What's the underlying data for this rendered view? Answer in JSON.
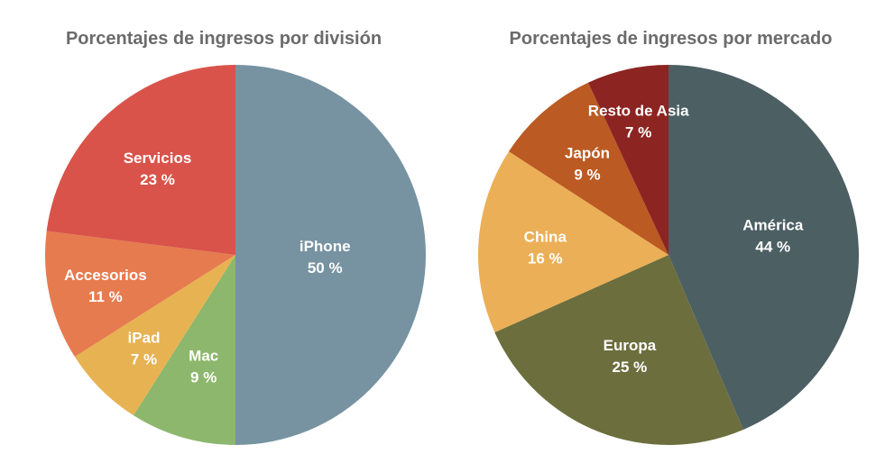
{
  "chart_data": [
    {
      "type": "pie",
      "title": "Porcentajes de ingresos por división",
      "start": "top",
      "direction": "clockwise",
      "slices": [
        {
          "label": "iPhone",
          "value": 50,
          "value_label": "50 %",
          "color": "#7793a2"
        },
        {
          "label": "Mac",
          "value": 9,
          "value_label": "9 %",
          "color": "#8db76c"
        },
        {
          "label": "iPad",
          "value": 7,
          "value_label": "7 %",
          "color": "#e7b252"
        },
        {
          "label": "Accesorios",
          "value": 11,
          "value_label": "11 %",
          "color": "#e67b4f"
        },
        {
          "label": "Servicios",
          "value": 23,
          "value_label": "23 %",
          "color": "#d9534a"
        }
      ]
    },
    {
      "type": "pie",
      "title": "Porcentajes de ingresos por mercado",
      "start": "top",
      "direction": "clockwise",
      "slices": [
        {
          "label": "América",
          "value": 44,
          "value_label": "44 %",
          "color": "#4c5f63"
        },
        {
          "label": "Europa",
          "value": 25,
          "value_label": "25 %",
          "color": "#6c6e3d"
        },
        {
          "label": "China",
          "value": 16,
          "value_label": "16 %",
          "color": "#ebaf57"
        },
        {
          "label": "Japón",
          "value": 9,
          "value_label": "9 %",
          "color": "#bb5a22"
        },
        {
          "label": "Resto de Asia",
          "value": 7,
          "value_label": "7 %",
          "color": "#8c2421"
        }
      ]
    }
  ]
}
